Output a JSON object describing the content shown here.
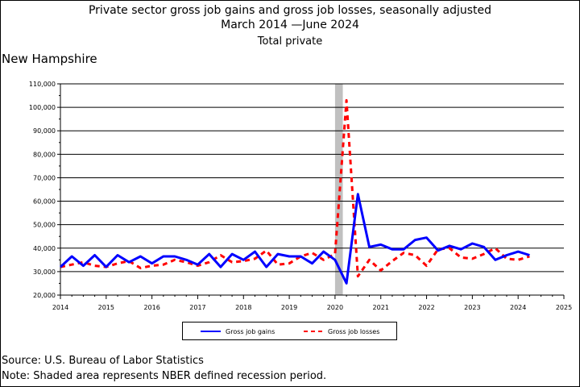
{
  "title": {
    "line1": "Private sector gross job gains and gross job losses, seasonally adjusted",
    "line2": "March 2014 —June 2024",
    "line3": "Total private"
  },
  "region": "New Hampshire",
  "footer": {
    "source": "Source: U.S. Bureau of Labor Statistics",
    "note": "Note: Shaded area represents NBER defined recession period."
  },
  "chart_data": {
    "type": "line",
    "xlim": [
      2014,
      2025
    ],
    "ylim": [
      20000,
      110000
    ],
    "x_ticks": [
      2014,
      2015,
      2016,
      2017,
      2018,
      2019,
      2020,
      2021,
      2022,
      2023,
      2024,
      2025
    ],
    "y_ticks": [
      20000,
      30000,
      40000,
      50000,
      60000,
      70000,
      80000,
      90000,
      100000,
      110000
    ],
    "y_tick_labels": [
      "20,000",
      "30,000",
      "40,000",
      "50,000",
      "60,000",
      "70,000",
      "80,000",
      "90,000",
      "100,000",
      "110,000"
    ],
    "grid": true,
    "legend_position": "bottom",
    "recession_band": {
      "start": 2020.0,
      "end": 2020.17,
      "color": "#c0c0c0"
    },
    "x": [
      2014.0,
      2014.25,
      2014.5,
      2014.75,
      2015.0,
      2015.25,
      2015.5,
      2015.75,
      2016.0,
      2016.25,
      2016.5,
      2016.75,
      2017.0,
      2017.25,
      2017.5,
      2017.75,
      2018.0,
      2018.25,
      2018.5,
      2018.75,
      2019.0,
      2019.25,
      2019.5,
      2019.75,
      2020.0,
      2020.25,
      2020.5,
      2020.75,
      2021.0,
      2021.25,
      2021.5,
      2021.75,
      2022.0,
      2022.25,
      2022.5,
      2022.75,
      2023.0,
      2023.25,
      2023.5,
      2023.75,
      2024.0,
      2024.25
    ],
    "series": [
      {
        "name": "Gross job gains",
        "color": "#0000ff",
        "dash": "solid",
        "values": [
          32000,
          36500,
          32500,
          37000,
          32000,
          37000,
          34000,
          36500,
          33500,
          36500,
          36500,
          35000,
          33000,
          37500,
          32000,
          37500,
          35000,
          38500,
          32000,
          37500,
          36500,
          36500,
          33500,
          38500,
          35000,
          25000,
          63000,
          40500,
          41500,
          39500,
          39500,
          43500,
          44500,
          39000,
          41000,
          39500,
          42000,
          40500,
          35000,
          37000,
          38500,
          37000
        ]
      },
      {
        "name": "Gross job losses",
        "color": "#ff0000",
        "dash": "dashed",
        "values": [
          32000,
          33000,
          34000,
          32500,
          32000,
          33500,
          34500,
          31500,
          32500,
          33000,
          35000,
          34000,
          32500,
          34000,
          37000,
          34000,
          34500,
          35500,
          39000,
          33000,
          33500,
          36500,
          38000,
          35000,
          37500,
          103000,
          28000,
          35000,
          30500,
          34500,
          38000,
          37000,
          32500,
          39500,
          40000,
          36000,
          35500,
          37500,
          40000,
          35500,
          35000,
          36500
        ]
      }
    ]
  }
}
